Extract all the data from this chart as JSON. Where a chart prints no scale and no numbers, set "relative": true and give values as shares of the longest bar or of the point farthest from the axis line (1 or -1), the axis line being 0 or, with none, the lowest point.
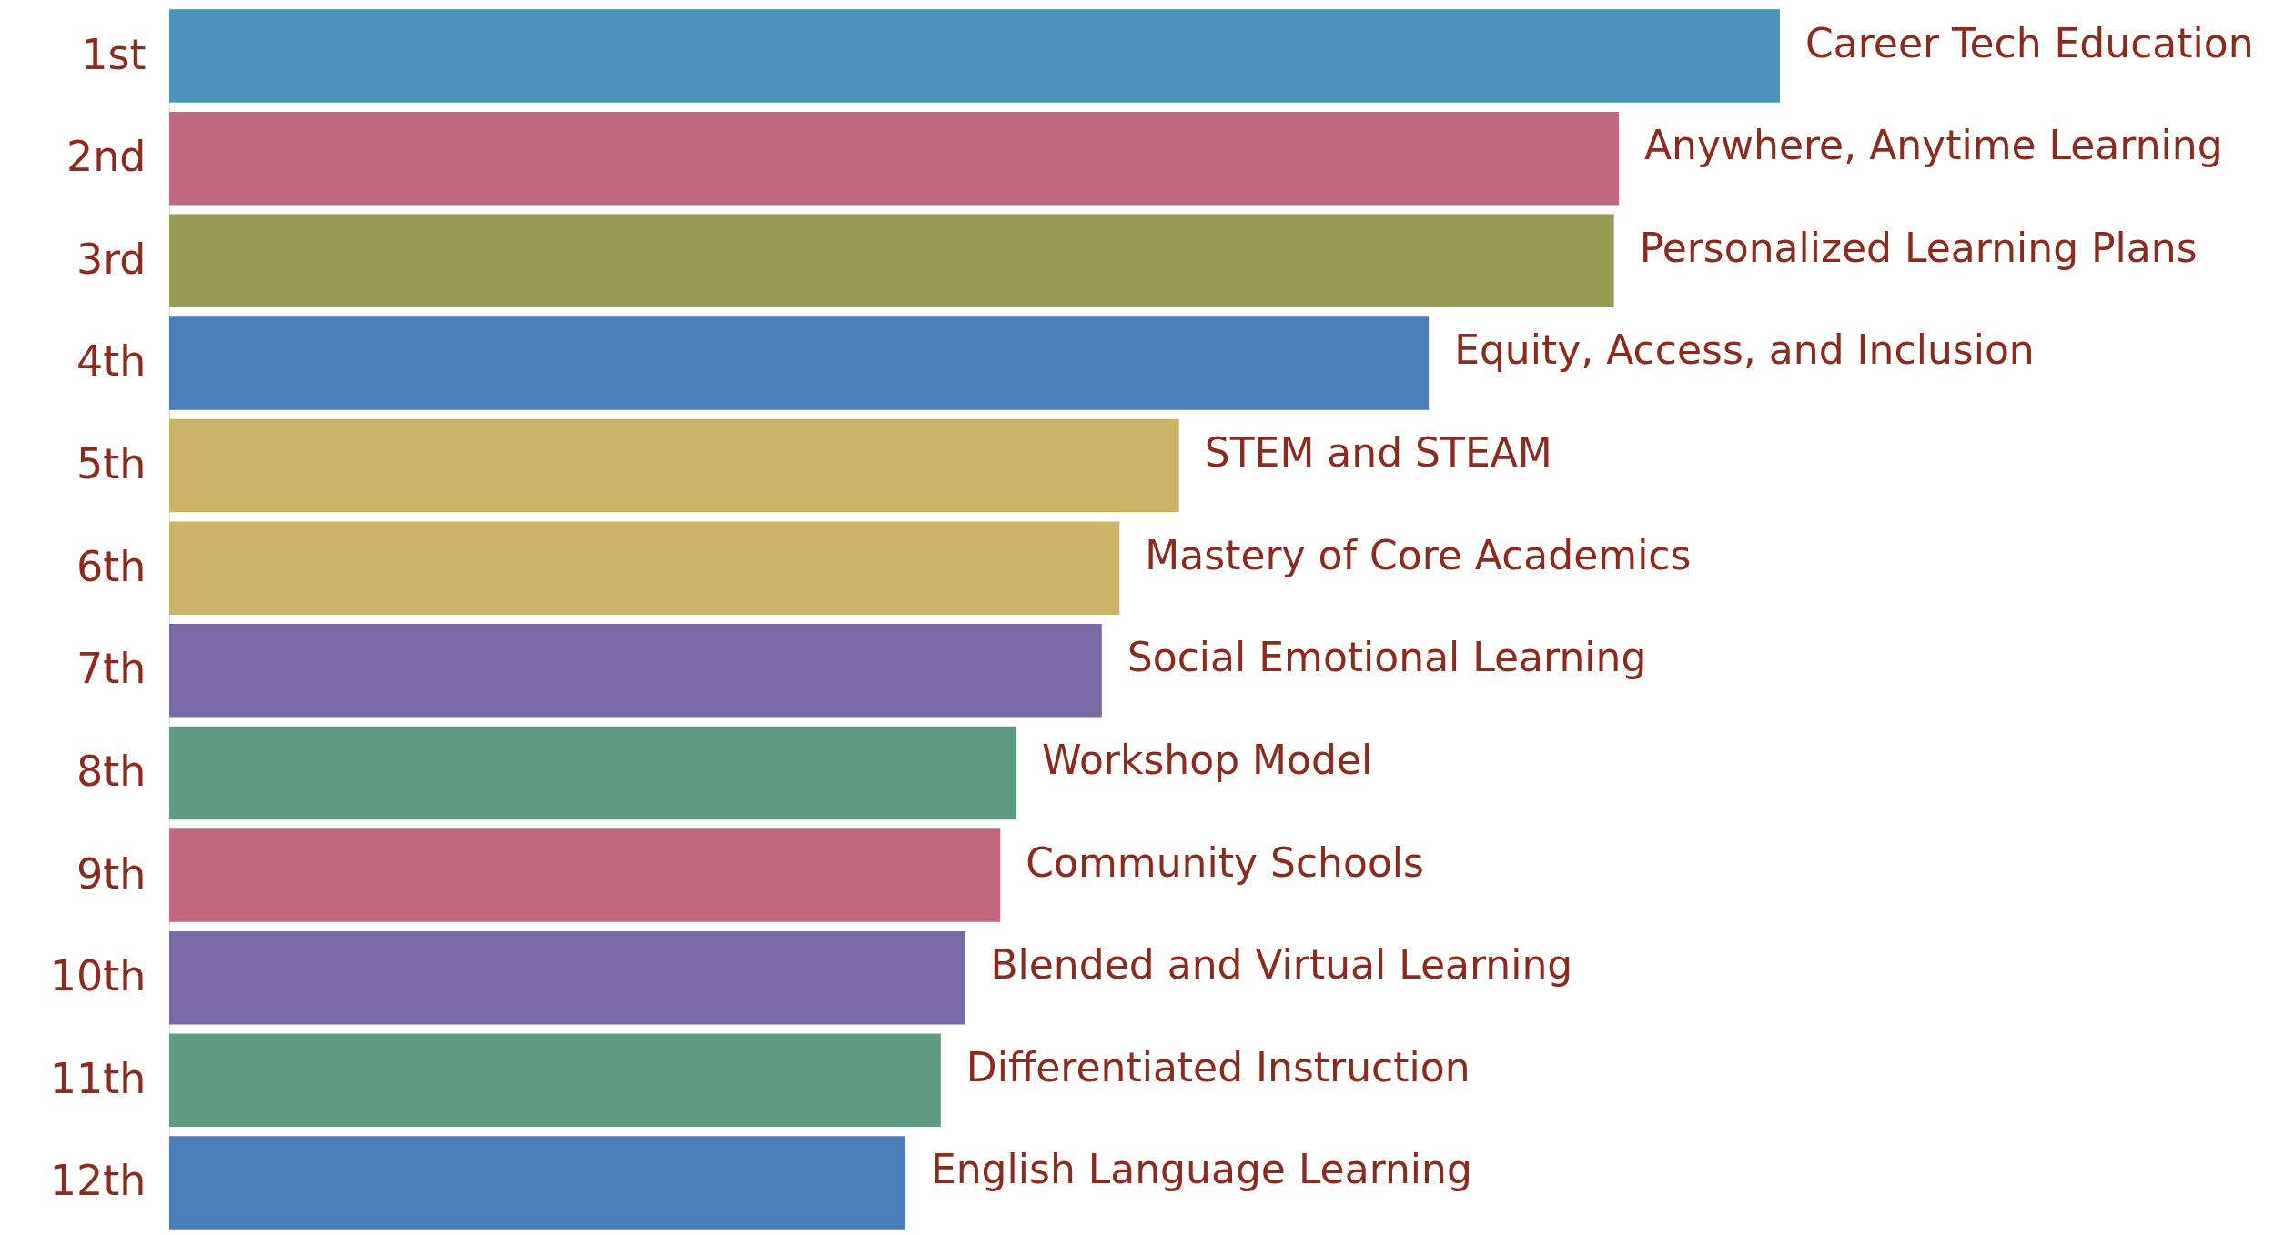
{
  "chart_data": {
    "type": "bar",
    "orientation": "horizontal",
    "relative": true,
    "categories": [
      "1st",
      "2nd",
      "3rd",
      "4th",
      "5th",
      "6th",
      "7th",
      "8th",
      "9th",
      "10th",
      "11th",
      "12th"
    ],
    "values": [
      1,
      0.9,
      0.897,
      0.782,
      0.627,
      0.59,
      0.579,
      0.526,
      0.516,
      0.494,
      0.479,
      0.457
    ],
    "colors": [
      "#4a94bb",
      "#c2697f",
      "#969c56",
      "#4a7dba",
      "#cbb466",
      "#cbb466",
      "#7a69a6",
      "#5e9b80",
      "#c2697f",
      "#7a69a6",
      "#5e9b80",
      "#4a7dba"
    ],
    "annotations": [
      {
        "text": "Career Tech Education",
        "x": 1,
        "y": "1st"
      },
      {
        "text": "Anywhere, Anytime Learning",
        "x": 0.9,
        "y": "2nd"
      },
      {
        "text": "Personalized Learning Plans",
        "x": 0.897,
        "y": "3rd"
      },
      {
        "text": "Equity, Access, and Inclusion",
        "x": 0.782,
        "y": "4th"
      },
      {
        "text": "STEM and STEAM",
        "x": 0.627,
        "y": "5th"
      },
      {
        "text": "Mastery of Core Academics",
        "x": 0.59,
        "y": "6th"
      },
      {
        "text": "Social Emotional Learning",
        "x": 0.579,
        "y": "7th"
      },
      {
        "text": "Workshop Model",
        "x": 0.526,
        "y": "8th"
      },
      {
        "text": "Community Schools",
        "x": 0.516,
        "y": "9th"
      },
      {
        "text": "Blended and Virtual Learning",
        "x": 0.494,
        "y": "10th"
      },
      {
        "text": "Differentiated Instruction",
        "x": 0.479,
        "y": "11th"
      },
      {
        "text": "English Language Learning",
        "x": 0.457,
        "y": "12th"
      }
    ]
  }
}
